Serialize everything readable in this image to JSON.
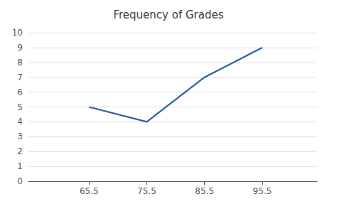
{
  "chart_data": {
    "type": "line",
    "title": "Frequency of Grades",
    "x": [
      65.5,
      75.5,
      85.5,
      95.5
    ],
    "values": [
      5,
      4,
      7,
      9
    ],
    "color": "#2E5EA8",
    "xlim": [
      55,
      105
    ],
    "ylim": [
      0,
      10
    ],
    "xticks": [
      65.5,
      75.5,
      85.5,
      95.5
    ],
    "yticks": [
      0,
      1,
      2,
      3,
      4,
      5,
      6,
      7,
      8,
      9,
      10
    ],
    "grid": true
  }
}
